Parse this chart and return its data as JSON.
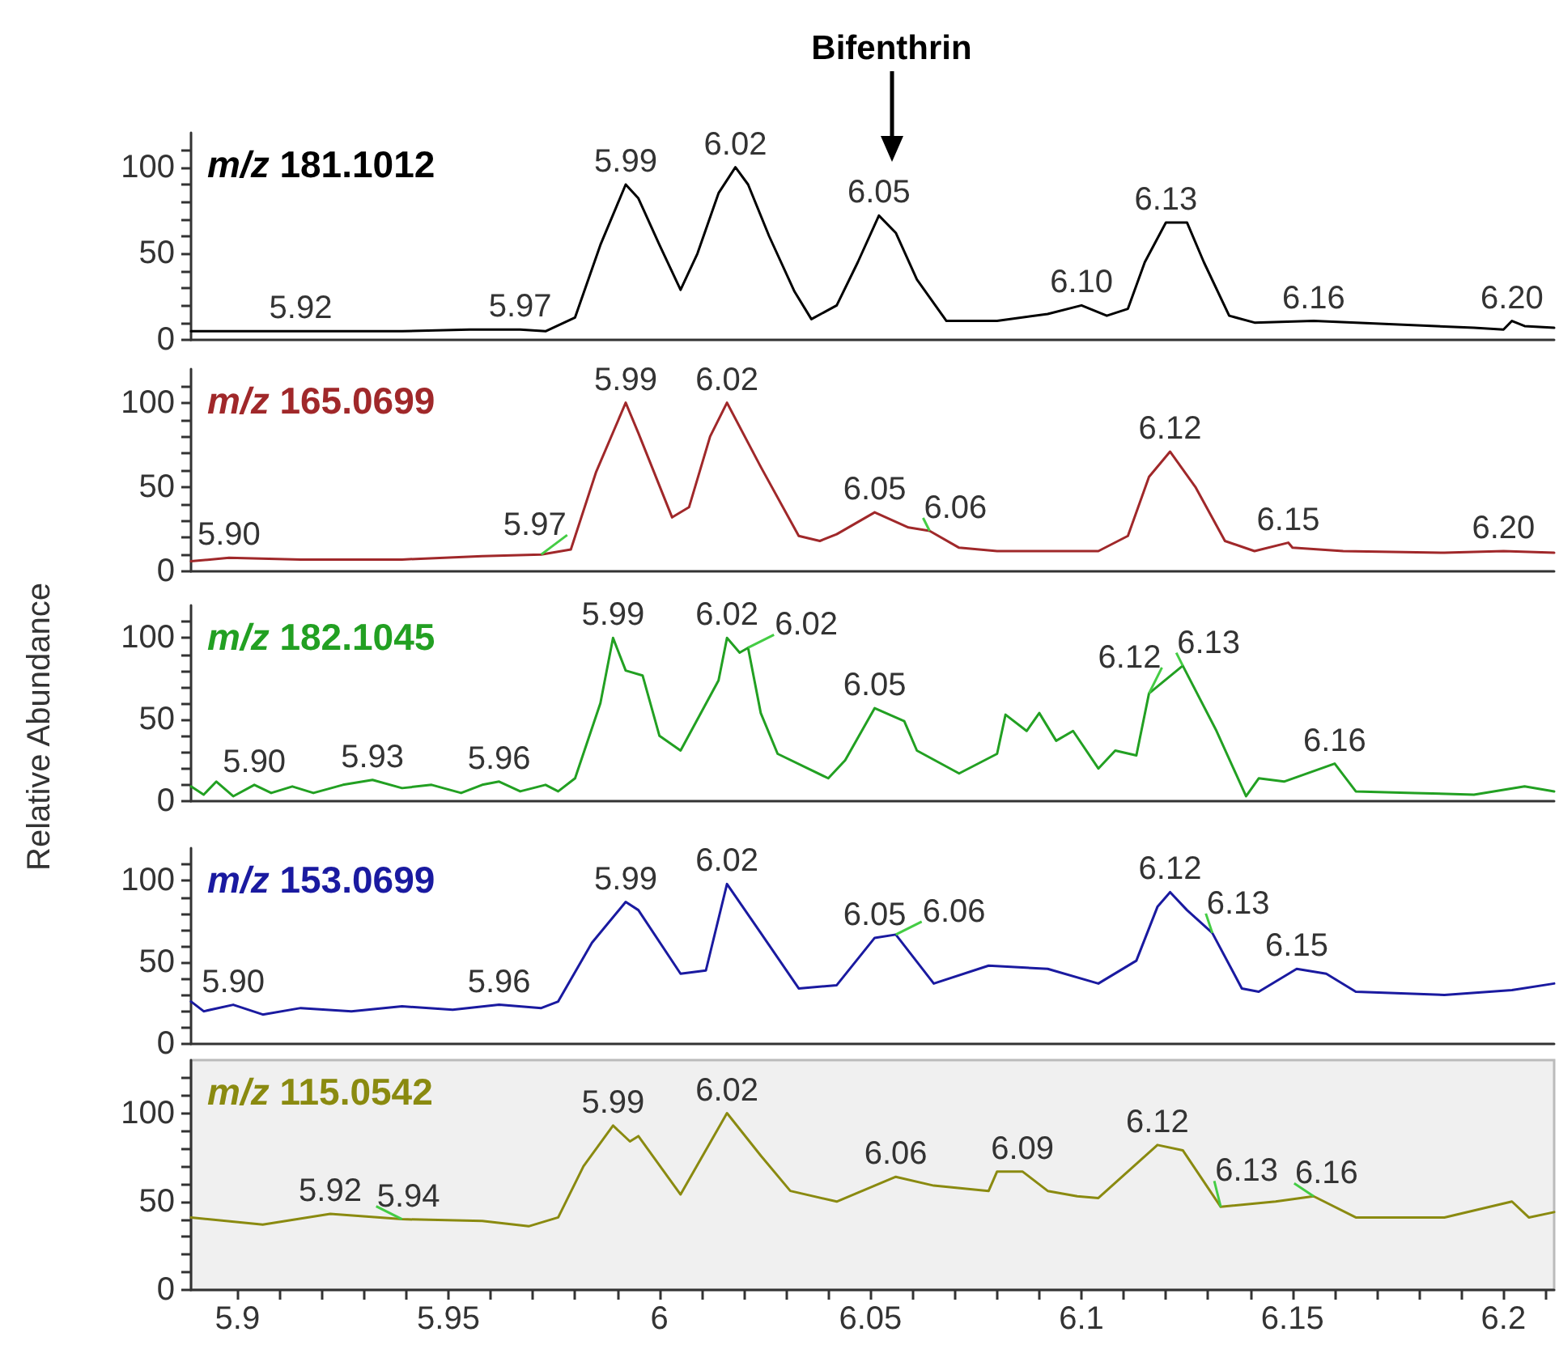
{
  "chart_data": [
    {
      "type": "line",
      "title": "m/z 181.1012",
      "xlim": [
        5.889,
        6.212
      ],
      "ylim": [
        0,
        120
      ],
      "yticks": [
        0,
        {
          "value": 10,
          "label": null
        },
        {
          "value": 20,
          "label": null
        },
        {
          "value": 30,
          "label": null
        },
        {
          "value": 40,
          "label": null
        },
        50,
        {
          "value": 60,
          "label": null
        },
        {
          "value": 70,
          "label": null
        },
        {
          "value": 80,
          "label": null
        },
        {
          "value": 90,
          "label": null
        },
        100,
        {
          "value": 110,
          "label": null
        }
      ],
      "tick_labels": "y",
      "marker": "none",
      "series": [
        {
          "color": "#000000",
          "x": [
            5.889,
            5.915,
            5.939,
            5.955,
            5.967,
            5.973,
            5.98,
            5.986,
            5.992,
            5.995,
            6.0,
            6.005,
            6.009,
            6.014,
            6.018,
            6.021,
            6.026,
            6.032,
            6.036,
            6.042,
            6.047,
            6.052,
            6.056,
            6.061,
            6.068,
            6.08,
            6.092,
            6.1,
            6.106,
            6.111,
            6.115,
            6.12,
            6.125,
            6.129,
            6.135,
            6.141,
            6.155,
            6.174,
            6.193,
            6.2,
            6.202,
            6.205,
            6.212
          ],
          "values": [
            5,
            5,
            5,
            6,
            6,
            5,
            13,
            55,
            90,
            82,
            55,
            29,
            50,
            85,
            100,
            90,
            60,
            28,
            12,
            20,
            45,
            72,
            62,
            35,
            11,
            11,
            15,
            20,
            14,
            18,
            45,
            68,
            68,
            45,
            14,
            10,
            11,
            9,
            7,
            6,
            11,
            8,
            7
          ]
        }
      ],
      "annotations": [
        {
          "text": "Bifenthrin",
          "x": 6.055
        },
        {
          "text": "5.92",
          "x": 5.915,
          "y": 5
        },
        {
          "text": "5.97",
          "x": 5.967,
          "y": 6
        },
        {
          "text": "5.99",
          "x": 5.992,
          "y": 90
        },
        {
          "text": "6.02",
          "x": 6.018,
          "y": 100
        },
        {
          "text": "6.05",
          "x": 6.052,
          "y": 72
        },
        {
          "text": "6.10",
          "x": 6.1,
          "y": 20
        },
        {
          "text": "6.13",
          "x": 6.12,
          "y": 68
        },
        {
          "text": "6.16",
          "x": 6.155,
          "y": 11
        },
        {
          "text": "6.20",
          "x": 6.202,
          "y": 11
        }
      ]
    },
    {
      "type": "line",
      "title": "m/z 165.0699",
      "xlim": [
        5.889,
        6.212
      ],
      "ylim": [
        0,
        120
      ],
      "yticks": [
        0,
        {
          "value": 10,
          "label": null
        },
        {
          "value": 20,
          "label": null
        },
        {
          "value": 30,
          "label": null
        },
        {
          "value": 40,
          "label": null
        },
        50,
        {
          "value": 60,
          "label": null
        },
        {
          "value": 70,
          "label": null
        },
        {
          "value": 80,
          "label": null
        },
        {
          "value": 90,
          "label": null
        },
        100,
        {
          "value": 110,
          "label": null
        }
      ],
      "tick_labels": "y",
      "marker": "none",
      "series": [
        {
          "color": "#a0282a",
          "x": [
            5.889,
            5.898,
            5.915,
            5.939,
            5.958,
            5.972,
            5.979,
            5.985,
            5.992,
            5.995,
            6.003,
            6.007,
            6.012,
            6.016,
            6.024,
            6.033,
            6.038,
            6.042,
            6.051,
            6.059,
            6.064,
            6.071,
            6.08,
            6.104,
            6.111,
            6.116,
            6.121,
            6.127,
            6.134,
            6.141,
            6.149,
            6.15,
            6.162,
            6.186,
            6.2,
            6.212
          ],
          "values": [
            6,
            8,
            7,
            7,
            9,
            10,
            13,
            59,
            100,
            82,
            32,
            38,
            80,
            100,
            62,
            21,
            18,
            22,
            35,
            26,
            24,
            14,
            12,
            12,
            21,
            56,
            71,
            50,
            18,
            12,
            17,
            14,
            12,
            11,
            12,
            11
          ]
        }
      ],
      "annotations": [
        {
          "text": "5.90",
          "x": 5.898,
          "y": 8
        },
        {
          "text": "5.97",
          "x": 5.972,
          "y": 10
        },
        {
          "text": "5.99",
          "x": 5.992,
          "y": 100
        },
        {
          "text": "6.02",
          "x": 6.016,
          "y": 100
        },
        {
          "text": "6.05",
          "x": 6.051,
          "y": 35
        },
        {
          "text": "6.06",
          "x": 6.064,
          "y": 24
        },
        {
          "text": "6.12",
          "x": 6.121,
          "y": 71
        },
        {
          "text": "6.15",
          "x": 6.149,
          "y": 17
        },
        {
          "text": "6.20",
          "x": 6.2,
          "y": 12
        }
      ]
    },
    {
      "type": "line",
      "title": "m/z 182.1045",
      "ylabel": "Relative Abundance",
      "xlim": [
        5.889,
        6.212
      ],
      "ylim": [
        0,
        120
      ],
      "yticks": [
        0,
        {
          "value": 10,
          "label": null
        },
        {
          "value": 20,
          "label": null
        },
        {
          "value": 30,
          "label": null
        },
        {
          "value": 40,
          "label": null
        },
        50,
        {
          "value": 60,
          "label": null
        },
        {
          "value": 70,
          "label": null
        },
        {
          "value": 80,
          "label": null
        },
        {
          "value": 90,
          "label": null
        },
        100,
        {
          "value": 110,
          "label": null
        }
      ],
      "tick_labels": "y",
      "marker": "none",
      "series": [
        {
          "color": "#22a022",
          "x": [
            5.889,
            5.892,
            5.895,
            5.899,
            5.904,
            5.908,
            5.913,
            5.918,
            5.925,
            5.932,
            5.939,
            5.946,
            5.953,
            5.958,
            5.962,
            5.967,
            5.973,
            5.976,
            5.98,
            5.986,
            5.989,
            5.992,
            5.996,
            6.0,
            6.005,
            6.014,
            6.016,
            6.019,
            6.021,
            6.024,
            6.028,
            6.04,
            6.044,
            6.051,
            6.058,
            6.061,
            6.071,
            6.08,
            6.082,
            6.087,
            6.09,
            6.094,
            6.098,
            6.104,
            6.108,
            6.113,
            6.116,
            6.124,
            6.132,
            6.139,
            6.142,
            6.148,
            6.16,
            6.165,
            6.179,
            6.193,
            6.205,
            6.212
          ],
          "values": [
            9,
            4,
            12,
            3,
            10,
            5,
            9,
            5,
            10,
            13,
            8,
            10,
            5,
            10,
            12,
            6,
            10,
            6,
            14,
            60,
            100,
            80,
            77,
            40,
            31,
            74,
            100,
            91,
            94,
            54,
            29,
            14,
            25,
            57,
            49,
            31,
            17,
            29,
            53,
            43,
            54,
            37,
            43,
            20,
            31,
            28,
            66,
            83,
            43,
            3,
            14,
            12,
            23,
            6,
            5,
            4,
            9,
            6
          ]
        }
      ],
      "annotations": [
        {
          "text": "5.90",
          "x": 5.904,
          "y": 10
        },
        {
          "text": "5.93",
          "x": 5.932,
          "y": 13
        },
        {
          "text": "5.96",
          "x": 5.962,
          "y": 12
        },
        {
          "text": "5.99",
          "x": 5.989,
          "y": 100
        },
        {
          "text": "6.02",
          "x": 6.016,
          "y": 100
        },
        {
          "text": "6.02",
          "x": 6.021,
          "y": 94
        },
        {
          "text": "6.05",
          "x": 6.051,
          "y": 57
        },
        {
          "text": "6.12",
          "x": 6.116,
          "y": 66
        },
        {
          "text": "6.13",
          "x": 6.124,
          "y": 83
        },
        {
          "text": "6.16",
          "x": 6.16,
          "y": 23
        }
      ]
    },
    {
      "type": "line",
      "title": "m/z 153.0699",
      "xlim": [
        5.889,
        6.212
      ],
      "ylim": [
        0,
        120
      ],
      "yticks": [
        0,
        {
          "value": 10,
          "label": null
        },
        {
          "value": 20,
          "label": null
        },
        {
          "value": 30,
          "label": null
        },
        {
          "value": 40,
          "label": null
        },
        50,
        {
          "value": 60,
          "label": null
        },
        {
          "value": 70,
          "label": null
        },
        {
          "value": 80,
          "label": null
        },
        {
          "value": 90,
          "label": null
        },
        100,
        {
          "value": 110,
          "label": null
        }
      ],
      "tick_labels": "y",
      "marker": "none",
      "series": [
        {
          "color": "#1a1aa0",
          "x": [
            5.889,
            5.892,
            5.899,
            5.906,
            5.915,
            5.927,
            5.939,
            5.951,
            5.962,
            5.972,
            5.976,
            5.984,
            5.992,
            5.995,
            6.005,
            6.011,
            6.016,
            6.024,
            6.033,
            6.042,
            6.051,
            6.056,
            6.065,
            6.078,
            6.092,
            6.104,
            6.113,
            6.118,
            6.121,
            6.125,
            6.131,
            6.138,
            6.142,
            6.151,
            6.158,
            6.165,
            6.186,
            6.202,
            6.212
          ],
          "values": [
            26,
            20,
            24,
            18,
            22,
            20,
            23,
            21,
            24,
            22,
            26,
            62,
            87,
            82,
            43,
            45,
            98,
            68,
            34,
            36,
            65,
            67,
            37,
            48,
            46,
            37,
            51,
            84,
            93,
            82,
            68,
            34,
            32,
            46,
            43,
            32,
            30,
            33,
            37
          ]
        }
      ],
      "annotations": [
        {
          "text": "5.90",
          "x": 5.899,
          "y": 24
        },
        {
          "text": "5.96",
          "x": 5.962,
          "y": 24
        },
        {
          "text": "5.99",
          "x": 5.992,
          "y": 87
        },
        {
          "text": "6.02",
          "x": 6.016,
          "y": 98
        },
        {
          "text": "6.05",
          "x": 6.051,
          "y": 65
        },
        {
          "text": "6.06",
          "x": 6.056,
          "y": 67
        },
        {
          "text": "6.12",
          "x": 6.121,
          "y": 93
        },
        {
          "text": "6.13",
          "x": 6.131,
          "y": 68
        },
        {
          "text": "6.15",
          "x": 6.151,
          "y": 46
        }
      ]
    },
    {
      "type": "line",
      "title": "m/z 115.0542",
      "xlim": [
        5.889,
        6.212
      ],
      "ylim": [
        0,
        130
      ],
      "xticks": [
        5.9,
        {
          "value": 5.91,
          "label": null
        },
        {
          "value": 5.92,
          "label": null
        },
        {
          "value": 5.93,
          "label": null
        },
        {
          "value": 5.94,
          "label": null
        },
        5.95,
        {
          "value": 5.96,
          "label": null
        },
        {
          "value": 5.97,
          "label": null
        },
        {
          "value": 5.98,
          "label": null
        },
        {
          "value": 5.99,
          "label": null
        },
        6.0,
        {
          "value": 6.01,
          "label": null
        },
        {
          "value": 6.02,
          "label": null
        },
        {
          "value": 6.03,
          "label": null
        },
        {
          "value": 6.04,
          "label": null
        },
        6.05,
        {
          "value": 6.06,
          "label": null
        },
        {
          "value": 6.07,
          "label": null
        },
        {
          "value": 6.08,
          "label": null
        },
        {
          "value": 6.09,
          "label": null
        },
        6.1,
        {
          "value": 6.11,
          "label": null
        },
        {
          "value": 6.12,
          "label": null
        },
        {
          "value": 6.13,
          "label": null
        },
        {
          "value": 6.14,
          "label": null
        },
        6.15,
        {
          "value": 6.16,
          "label": null
        },
        {
          "value": 6.17,
          "label": null
        },
        {
          "value": 6.18,
          "label": null
        },
        {
          "value": 6.19,
          "label": null
        },
        6.2,
        {
          "value": 6.21,
          "label": null
        }
      ],
      "yticks": [
        0,
        {
          "value": 10,
          "label": null
        },
        {
          "value": 20,
          "label": null
        },
        {
          "value": 30,
          "label": null
        },
        {
          "value": 40,
          "label": null
        },
        50,
        {
          "value": 60,
          "label": null
        },
        {
          "value": 70,
          "label": null
        },
        {
          "value": 80,
          "label": null
        },
        {
          "value": 90,
          "label": null
        },
        100,
        {
          "value": 110,
          "label": null
        },
        {
          "value": 120,
          "label": null
        }
      ],
      "marker": "none",
      "series": [
        {
          "color": "#8a8a10",
          "x": [
            5.889,
            5.906,
            5.922,
            5.939,
            5.958,
            5.969,
            5.976,
            5.982,
            5.989,
            5.993,
            5.995,
            6.005,
            6.016,
            6.024,
            6.031,
            6.042,
            6.056,
            6.065,
            6.078,
            6.08,
            6.086,
            6.092,
            6.099,
            6.104,
            6.118,
            6.124,
            6.133,
            6.146,
            6.155,
            6.165,
            6.186,
            6.202,
            6.206,
            6.212
          ],
          "values": [
            41,
            37,
            43,
            40,
            39,
            36,
            41,
            70,
            93,
            84,
            87,
            54,
            100,
            76,
            56,
            50,
            64,
            59,
            56,
            67,
            67,
            56,
            53,
            52,
            82,
            79,
            47,
            50,
            53,
            41,
            41,
            50,
            41,
            44
          ]
        }
      ],
      "annotations": [
        {
          "text": "5.92",
          "x": 5.922,
          "y": 43
        },
        {
          "text": "5.94",
          "x": 5.939,
          "y": 40
        },
        {
          "text": "5.99",
          "x": 5.989,
          "y": 93
        },
        {
          "text": "6.02",
          "x": 6.016,
          "y": 100
        },
        {
          "text": "6.06",
          "x": 6.056,
          "y": 64
        },
        {
          "text": "6.09",
          "x": 6.086,
          "y": 67
        },
        {
          "text": "6.12",
          "x": 6.118,
          "y": 82
        },
        {
          "text": "6.13",
          "x": 6.133,
          "y": 47
        },
        {
          "text": "6.16",
          "x": 6.155,
          "y": 53
        }
      ]
    }
  ]
}
